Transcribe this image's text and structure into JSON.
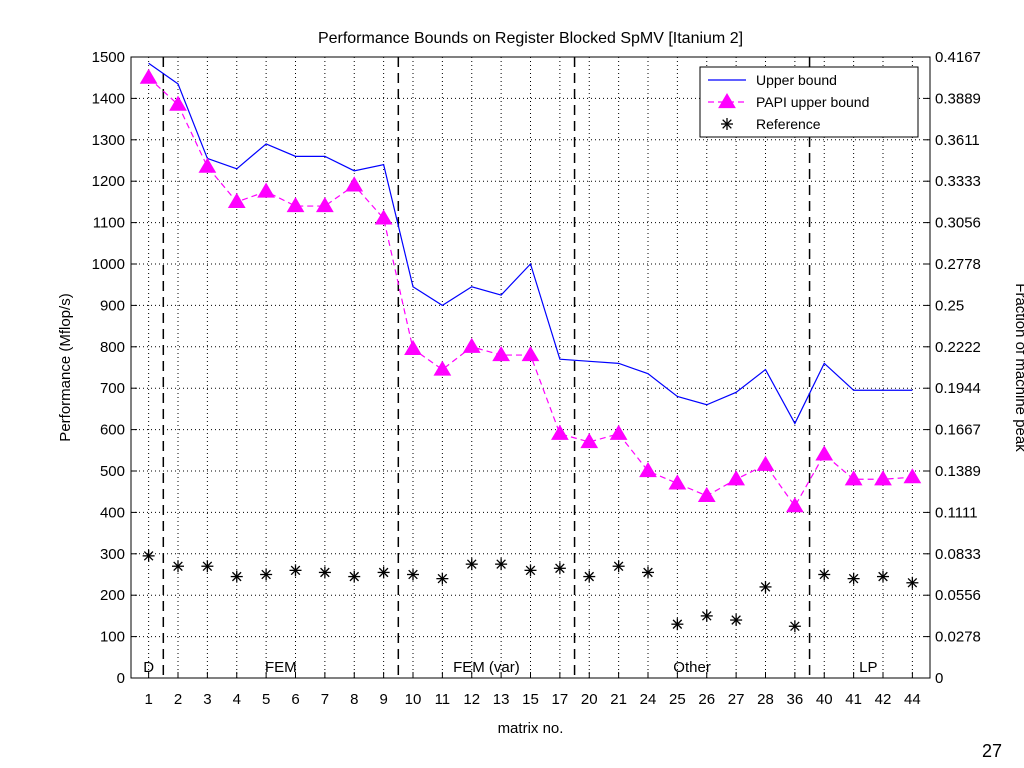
{
  "page_number": "27",
  "chart_data": {
    "type": "line",
    "title": "Performance Bounds on Register Blocked SpMV [Itanium 2]",
    "xlabel": "matrix no.",
    "ylabel": "Performance (Mflop/s)",
    "y2label": "Fraction of machine peak",
    "ylim": [
      0,
      1500
    ],
    "y2lim": [
      0,
      0.4167
    ],
    "grid": true,
    "legend_position": "top-right",
    "yticks": [
      0,
      100,
      200,
      300,
      400,
      500,
      600,
      700,
      800,
      900,
      1000,
      1100,
      1200,
      1300,
      1400,
      1500
    ],
    "y2ticks": [
      "0",
      "0.0278",
      "0.0556",
      "0.0833",
      "0.1111",
      "0.1389",
      "0.1667",
      "0.1944",
      "0.2222",
      "0.25",
      "0.2778",
      "0.3056",
      "0.3333",
      "0.3611",
      "0.3889",
      "0.4167"
    ],
    "categories": [
      "1",
      "2",
      "3",
      "4",
      "5",
      "6",
      "7",
      "8",
      "9",
      "10",
      "11",
      "12",
      "13",
      "15",
      "17",
      "20",
      "21",
      "24",
      "25",
      "26",
      "27",
      "28",
      "36",
      "40",
      "41",
      "42",
      "44"
    ],
    "series": [
      {
        "name": "Upper bound",
        "color": "#0000ff",
        "style": "solid",
        "values": [
          1485,
          1435,
          1255,
          1230,
          1290,
          1260,
          1260,
          1225,
          1240,
          945,
          900,
          945,
          925,
          1000,
          770,
          765,
          760,
          735,
          680,
          660,
          690,
          745,
          615,
          760,
          695,
          695,
          695
        ]
      },
      {
        "name": "PAPI upper bound",
        "color": "#ff00ff",
        "style": "dashed",
        "marker": "triangle",
        "values": [
          1450,
          1385,
          1235,
          1150,
          1175,
          1140,
          1140,
          1190,
          1110,
          795,
          745,
          800,
          780,
          780,
          590,
          570,
          590,
          500,
          470,
          440,
          480,
          515,
          415,
          540,
          480,
          480,
          485
        ]
      },
      {
        "name": "Reference",
        "color": "#000000",
        "style": "none",
        "marker": "asterisk",
        "values": [
          295,
          270,
          270,
          245,
          250,
          260,
          255,
          245,
          255,
          250,
          240,
          275,
          275,
          260,
          265,
          245,
          270,
          255,
          130,
          150,
          140,
          220,
          125,
          250,
          240,
          245,
          230
        ]
      }
    ],
    "regions": [
      {
        "label": "D",
        "start": 0,
        "end": 0
      },
      {
        "label": "FEM",
        "start": 1,
        "end": 8
      },
      {
        "label": "FEM (var)",
        "start": 9,
        "end": 14
      },
      {
        "label": "Other",
        "start": 15,
        "end": 22
      },
      {
        "label": "LP",
        "start": 23,
        "end": 26
      }
    ]
  }
}
